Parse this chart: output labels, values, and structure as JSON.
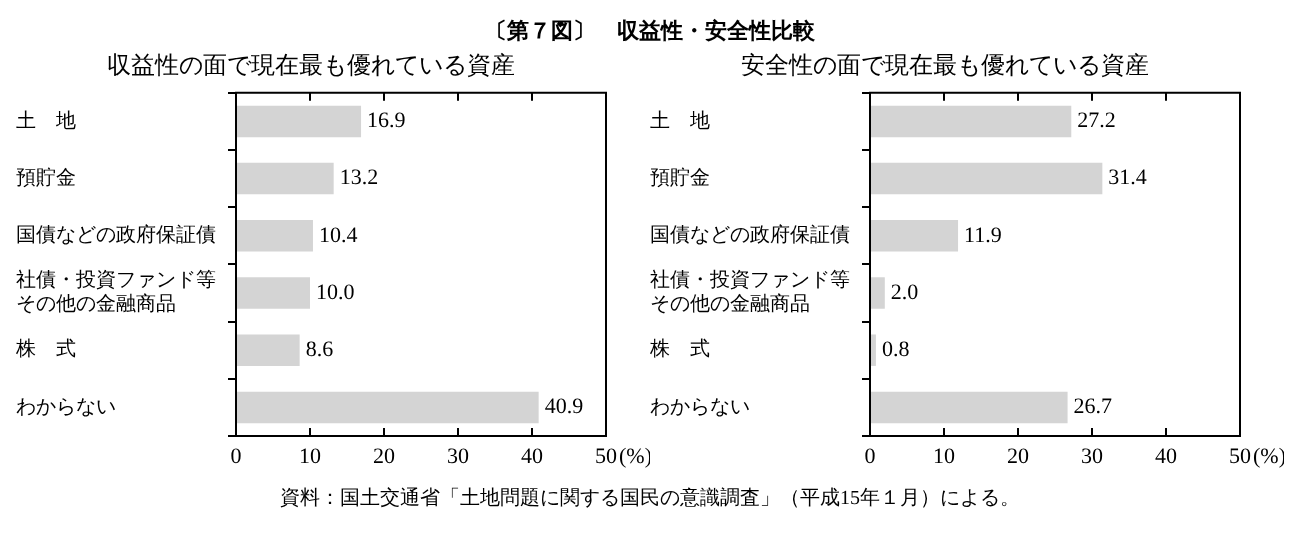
{
  "chart_data": [
    {
      "type": "bar",
      "orientation": "horizontal",
      "title": "収益性の面で現在最も優れている資産",
      "annotations": [
        "〔第７図〕　収益性・安全性比較"
      ],
      "categories": [
        "土　地",
        "預貯金",
        "国債などの政府保証債",
        "社債・投資ファンド等その他の金融商品",
        "株　式",
        "わからない"
      ],
      "values": [
        16.9,
        13.2,
        10.4,
        10.0,
        8.6,
        40.9
      ],
      "value_labels": [
        "16.9",
        "13.2",
        "10.4",
        "10.0",
        "8.6",
        "40.9"
      ],
      "color": "#d4d4d4",
      "grid": false,
      "legend": false,
      "xlim": [
        0,
        50
      ],
      "xticks": [
        0,
        10,
        20,
        30,
        40,
        50
      ],
      "xlabel": "(%)"
    },
    {
      "type": "bar",
      "orientation": "horizontal",
      "title": "安全性の面で現在最も優れている資産",
      "annotations": [
        "資料：国土交通省「土地問題に関する国民の意識調査」（平成15年１月）による。"
      ],
      "categories": [
        "土　地",
        "預貯金",
        "国債などの政府保証債",
        "社債・投資ファンド等その他の金融商品",
        "株　式",
        "わからない"
      ],
      "values": [
        27.2,
        31.4,
        11.9,
        2.0,
        0.8,
        26.7
      ],
      "value_labels": [
        "27.2",
        "31.4",
        "11.9",
        "2.0",
        "0.8",
        "26.7"
      ],
      "color": "#d4d4d4",
      "grid": false,
      "legend": false,
      "xlim": [
        0,
        50
      ],
      "xticks": [
        0,
        10,
        20,
        30,
        40,
        50
      ],
      "xlabel": "(%)"
    }
  ]
}
